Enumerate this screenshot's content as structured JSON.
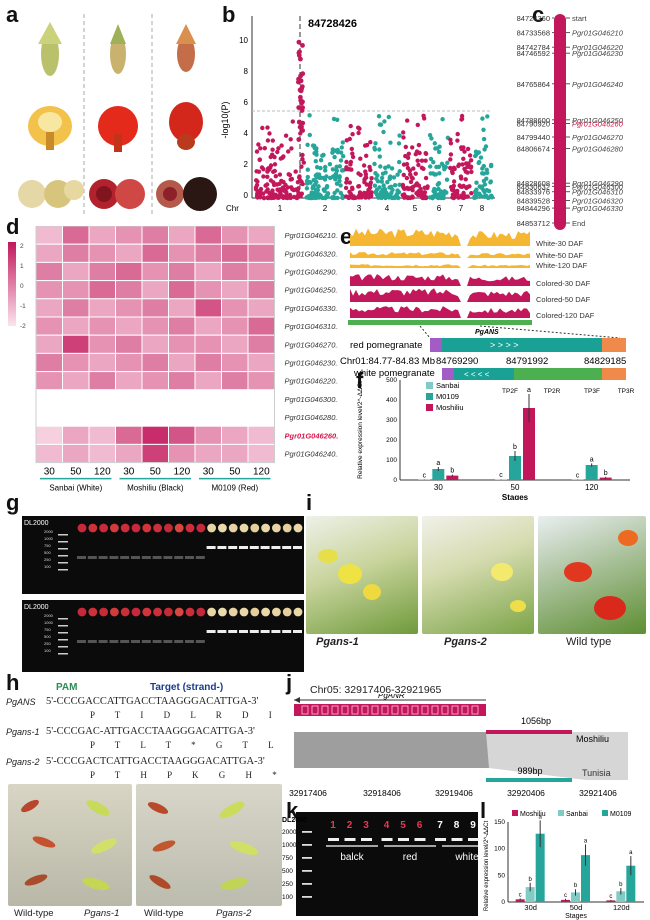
{
  "panels": [
    "a",
    "b",
    "c",
    "d",
    "e",
    "f",
    "g",
    "h",
    "i",
    "j",
    "k",
    "l"
  ],
  "b": {
    "peak_label": "84728426",
    "ylabel": "-log10(P)",
    "yticks": [
      "0",
      "2",
      "4",
      "6",
      "8",
      "10"
    ],
    "xlabel": "Chr",
    "chr_ticks": [
      "1",
      "2",
      "3",
      "4",
      "5",
      "6",
      "7",
      "8"
    ]
  },
  "c": {
    "positions": [
      "84724360",
      "84733568",
      "84742784",
      "84746592",
      "84765864",
      "84788600",
      "84790920",
      "84799440",
      "84806674",
      "84828608",
      "84830632",
      "84833976",
      "84839528",
      "84844296",
      "84853712"
    ],
    "genes": [
      "start",
      "Pgr01G046210",
      "Pgr01G046220",
      "Pgr01G046230",
      "Pgr01G046240",
      "Pgr01G046250",
      "Pgr01G046260",
      "Pgr01G046270",
      "Pgr01G046280",
      "Pgr01G046290",
      "Pgr01G046300",
      "Pgr01G046310",
      "Pgr01G046320",
      "Pgr01G046330",
      "End"
    ],
    "highlight_index": 6,
    "highlight_color": "#d6184b"
  },
  "d": {
    "genes": [
      "Pgr01G046210.1",
      "Pgr01G046320.1",
      "Pgr01G046290.1",
      "Pgr01G046250.1",
      "Pgr01G046330.1",
      "Pgr01G046310.1",
      "Pgr01G046270.1",
      "Pgr01G046230.1",
      "Pgr01G046220.1",
      "Pgr01G046300.1",
      "Pgr01G046280.1",
      "Pgr01G046260.1",
      "Pgr01G046240.1"
    ],
    "highlight_index": 11,
    "legend_ticks": [
      "2",
      "1",
      "0",
      "-1",
      "-2"
    ],
    "stage_labels": [
      "30",
      "50",
      "120",
      "30",
      "50",
      "120",
      "30",
      "50",
      "120"
    ],
    "group_labels": [
      "Sanbai (White)",
      "Moshiliu (Black)",
      "M0109 (Red)"
    ],
    "z": [
      [
        0.2,
        0.6,
        0.3,
        0.4,
        0.5,
        0.3,
        0.6,
        0.4,
        0.3
      ],
      [
        0.3,
        0.5,
        0.4,
        0.3,
        0.6,
        0.4,
        0.5,
        0.6,
        0.5
      ],
      [
        0.5,
        0.3,
        0.5,
        0.6,
        0.4,
        0.5,
        0.3,
        0.5,
        0.4
      ],
      [
        0.4,
        0.4,
        0.6,
        0.5,
        0.3,
        0.6,
        0.4,
        0.3,
        0.5
      ],
      [
        0.3,
        0.5,
        0.3,
        0.4,
        0.5,
        0.3,
        0.7,
        0.4,
        0.3
      ],
      [
        0.4,
        0.3,
        0.4,
        0.3,
        0.4,
        0.5,
        0.3,
        0.4,
        0.6
      ],
      [
        0.3,
        0.8,
        0.4,
        0.5,
        0.3,
        0.4,
        0.4,
        0.3,
        0.5
      ],
      [
        0.5,
        0.4,
        0.3,
        0.4,
        0.5,
        0.3,
        0.5,
        0.4,
        0.3
      ],
      [
        0.4,
        0.3,
        0.5,
        0.3,
        0.4,
        0.5,
        0.3,
        0.5,
        0.4
      ],
      [
        0.0,
        0.0,
        0.0,
        0.0,
        0.0,
        0.0,
        0.0,
        0.0,
        0.0
      ],
      [
        0.0,
        0.0,
        0.0,
        0.0,
        0.0,
        0.0,
        0.0,
        0.0,
        0.0
      ],
      [
        0.1,
        0.3,
        0.2,
        0.6,
        0.9,
        0.7,
        0.4,
        0.3,
        0.2
      ],
      [
        0.2,
        0.3,
        0.2,
        0.3,
        0.8,
        0.4,
        0.3,
        0.3,
        0.2
      ]
    ]
  },
  "e": {
    "tracks": [
      "White-30 DAF",
      "White-50 DAF",
      "White-120 DAF",
      "Colored-30 DAF",
      "Colored-50 DAF",
      "Colored-120 DAF"
    ],
    "gene_label": "PgANS",
    "red_label": "red pomegranate",
    "chr_label": "Chr01:84.77-84.83 Mb",
    "coords": [
      "84769290",
      "84791992",
      "84829185"
    ],
    "white_label": "white pomegranate",
    "primers": [
      "TP2F",
      "TP2R",
      "TP3F",
      "TP3R"
    ]
  },
  "f": {
    "ylabel": "Relative expression level/2^-ΔΔCt",
    "xlabel": "Stages",
    "yticks": [
      "0",
      "100",
      "200",
      "300",
      "400",
      "500"
    ],
    "letters": [
      "c",
      "a",
      "b",
      "c",
      "b",
      "a",
      "c",
      "a",
      "b"
    ]
  },
  "g": {
    "marker": "DL2000",
    "marker_sizes": [
      "2000",
      "1000",
      "750",
      "500",
      "250",
      "100"
    ]
  },
  "h": {
    "pam": "PAM",
    "target": "Target (strand-)",
    "rows": [
      {
        "label": "PgANS",
        "seq": "5'-CCCGACCATTGACCTAAGGGACATTGA-3'",
        "aa": "P T I D L R D I"
      },
      {
        "label": "Pgans-1",
        "seq": "5'-CCCGAC-ATTGACCTAAGGGACATTGA-3'",
        "aa": "P T L T * G T L"
      },
      {
        "label": "Pgans-2",
        "seq": "5'-CCCGACTCATTGACCTAAGGGACATTGA-3'",
        "aa": "P T H P K G H *"
      }
    ],
    "photo_labels": [
      "Wild-type",
      "Pgans-1",
      "Wild-type",
      "Pgans-2"
    ]
  },
  "i": {
    "labels": [
      "Pgans-1",
      "Pgans-2",
      "Wild type"
    ]
  },
  "j": {
    "region": "Chr05: 32917406-32921965",
    "gene": "PgANR",
    "bp1": "1056bp",
    "name1": "Moshiliu",
    "bp2": "989bp",
    "name2": "Tunisia",
    "ticks": [
      "32917406",
      "32918406",
      "32919406",
      "32920406",
      "32921406"
    ]
  },
  "k": {
    "marker": "DL2000",
    "lanes": [
      "1",
      "2",
      "3",
      "4",
      "5",
      "6",
      "7",
      "8",
      "9"
    ],
    "groups": [
      "balck",
      "red",
      "white"
    ],
    "marker_sizes": [
      "2000",
      "1000",
      "750",
      "500",
      "250",
      "100"
    ]
  },
  "l": {
    "legend": [
      "Moshiliu",
      "Sanbai",
      "M0109"
    ],
    "colors": [
      "#c2185b",
      "#80cbc4",
      "#26a69a"
    ],
    "yticks": [
      "0",
      "50",
      "100",
      "150"
    ],
    "ylabel": "Relative expression level/2^-ΔΔCt",
    "xlabel": "Stages",
    "categories": [
      "30d",
      "50d",
      "120d"
    ]
  },
  "chart_data": [
    {
      "type": "scatter",
      "panel": "b",
      "title": "GWAS Manhattan plot",
      "xlabel": "Chr",
      "ylabel": "-log10(P)",
      "ylim": [
        0,
        12
      ],
      "threshold": 5.6,
      "peak": {
        "chr": 1,
        "label": "84728426",
        "value": 11.2
      },
      "chromosomes": [
        "1",
        "2",
        "3",
        "4",
        "5",
        "6",
        "7",
        "8"
      ]
    },
    {
      "type": "bar",
      "panel": "f",
      "xlabel": "Stages",
      "ylabel": "Relative expression level/2^-ΔΔCt",
      "ylim": [
        0,
        500
      ],
      "categories": [
        "30",
        "50",
        "120"
      ],
      "series": [
        {
          "name": "Sanbai",
          "color": "#80cbc4",
          "values": [
            2,
            3,
            2
          ],
          "errors": [
            1,
            1,
            1
          ]
        },
        {
          "name": "M0109",
          "color": "#26a69a",
          "values": [
            55,
            120,
            75
          ],
          "errors": [
            10,
            25,
            8
          ]
        },
        {
          "name": "Moshiliu",
          "color": "#c2185b",
          "values": [
            22,
            360,
            12
          ],
          "errors": [
            5,
            70,
            4
          ]
        }
      ],
      "letters": [
        [
          "c",
          "a",
          "b"
        ],
        [
          "c",
          "b",
          "a"
        ],
        [
          "c",
          "a",
          "b"
        ]
      ]
    },
    {
      "type": "bar",
      "panel": "l",
      "xlabel": "Stages",
      "ylabel": "Relative expression level/2^-ΔΔCt",
      "ylim": [
        0,
        150
      ],
      "categories": [
        "30d",
        "50d",
        "120d"
      ],
      "series": [
        {
          "name": "Moshiliu",
          "color": "#c2185b",
          "values": [
            5,
            4,
            3
          ],
          "errors": [
            2,
            2,
            1
          ]
        },
        {
          "name": "Sanbai",
          "color": "#80cbc4",
          "values": [
            28,
            18,
            20
          ],
          "errors": [
            8,
            6,
            6
          ]
        },
        {
          "name": "M0109",
          "color": "#26a69a",
          "values": [
            128,
            88,
            68
          ],
          "errors": [
            25,
            20,
            18
          ]
        }
      ],
      "letters": [
        [
          "c",
          "b",
          "a"
        ],
        [
          "c",
          "b",
          "a"
        ],
        [
          "c",
          "b",
          "a"
        ]
      ]
    }
  ]
}
